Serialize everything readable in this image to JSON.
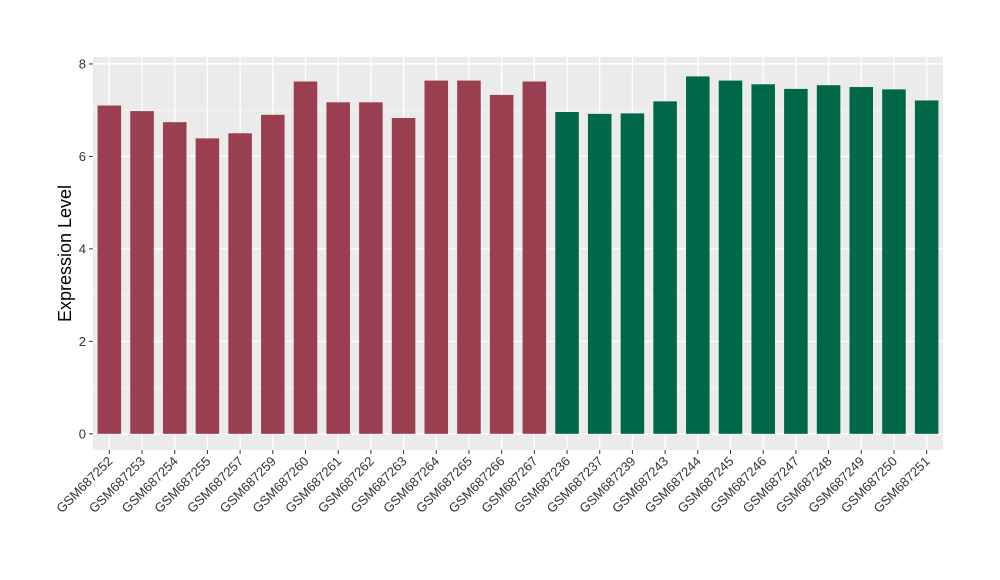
{
  "chart_data": {
    "type": "bar",
    "title": "",
    "xlabel": "",
    "ylabel": "Expression Level",
    "ylim": [
      -0.35,
      8.15
    ],
    "yticks": [
      0,
      2,
      4,
      6,
      8
    ],
    "grid": true,
    "background": "#EBEBEB",
    "categories": [
      "GSM687252",
      "GSM687253",
      "GSM687254",
      "GSM687255",
      "GSM687257",
      "GSM687259",
      "GSM687260",
      "GSM687261",
      "GSM687262",
      "GSM687263",
      "GSM687264",
      "GSM687265",
      "GSM687266",
      "GSM687267",
      "GSM687236",
      "GSM687237",
      "GSM687239",
      "GSM687243",
      "GSM687244",
      "GSM687245",
      "GSM687246",
      "GSM687247",
      "GSM687248",
      "GSM687249",
      "GSM687250",
      "GSM687251"
    ],
    "values": [
      7.1,
      6.98,
      6.74,
      6.39,
      6.5,
      6.9,
      7.62,
      7.17,
      7.17,
      6.83,
      7.64,
      7.64,
      7.33,
      7.62,
      6.96,
      6.92,
      6.93,
      7.19,
      7.73,
      7.64,
      7.56,
      7.46,
      7.54,
      7.5,
      7.45,
      7.21
    ],
    "bar_colors": [
      "#993F4F",
      "#993F4F",
      "#993F4F",
      "#993F4F",
      "#993F4F",
      "#993F4F",
      "#993F4F",
      "#993F4F",
      "#993F4F",
      "#993F4F",
      "#993F4F",
      "#993F4F",
      "#993F4F",
      "#993F4F",
      "#006848",
      "#006848",
      "#006848",
      "#006848",
      "#006848",
      "#006848",
      "#006848",
      "#006848",
      "#006848",
      "#006848",
      "#006848",
      "#006848"
    ]
  }
}
